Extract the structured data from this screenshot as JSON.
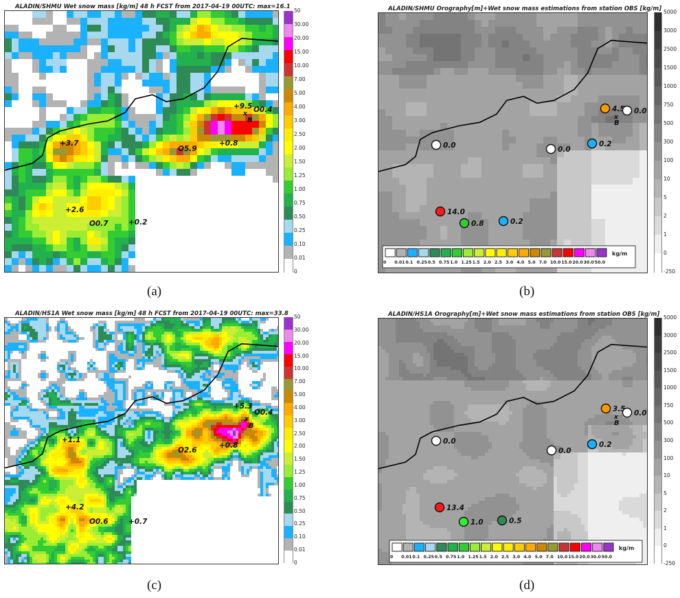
{
  "panels": {
    "a": {
      "title": "ALADIN/SHMU Wet snow mass [kg/m] 48 h FCST from 2017-04-19 00UTC: max=16.1",
      "caption": "(a)",
      "colorbar_labels": [
        "50",
        "30.00",
        "20.00",
        "15.00",
        "10.00",
        "7.00",
        "5.00",
        "4.00",
        "3.00",
        "2.50",
        "2.00",
        "1.50",
        "1.25",
        "1.00",
        "0.75",
        "0.50",
        "0.25",
        "0.10",
        "0.01",
        "0"
      ],
      "stations": [
        {
          "marker": "+",
          "value": "9.5",
          "color": "#000000"
        },
        {
          "marker": "O",
          "value": "0.4",
          "color": "#000000"
        },
        {
          "marker": "+",
          "value": "3.7",
          "color": "#000000"
        },
        {
          "marker": "O",
          "value": "5.9",
          "color": "#000000"
        },
        {
          "marker": "+",
          "value": "0.8",
          "color": "#000000"
        },
        {
          "marker": "+",
          "value": "2.6",
          "color": "#000000"
        },
        {
          "marker": "O",
          "value": "0.7",
          "color": "#000000"
        },
        {
          "marker": "+",
          "value": "0.2",
          "color": "#000000"
        }
      ],
      "point_label": "B",
      "point_marker": "x"
    },
    "b": {
      "title": "ALADIN/SHMU Orography[m]+Wet snow mass estimations from station OBS [kg/m]",
      "caption": "(b)",
      "colorbar_labels": [
        "5000",
        "3000",
        "2500",
        "1500",
        "1000",
        "750",
        "500",
        "300",
        "100",
        "10",
        "5",
        "2",
        "1",
        "0",
        "-250"
      ],
      "stations": [
        {
          "value": "4.5",
          "color": "#ff9900"
        },
        {
          "value": "0.0",
          "color": "#ffffff"
        },
        {
          "value": "0.0",
          "color": "#ffffff"
        },
        {
          "value": "0.0",
          "color": "#ffffff"
        },
        {
          "value": "0.2",
          "color": "#1ab2ff"
        },
        {
          "value": "14.0",
          "color": "#ff1a1a"
        },
        {
          "value": "0.8",
          "color": "#33cc33"
        },
        {
          "value": "0.2",
          "color": "#1ab2ff"
        }
      ],
      "point_label": "B",
      "point_marker": "x",
      "legend_labels": [
        "0",
        "0.01",
        "0.1",
        "0.25",
        "0.5",
        "0.75",
        "1.0",
        "1.25",
        "1.5",
        "2.0",
        "2.5",
        "3.0",
        "4.0",
        "5.0",
        "7.0",
        "10.0",
        "15.0",
        "20.0",
        "30.0",
        "50.0"
      ],
      "legend_unit": "kg/m"
    },
    "c": {
      "title": "ALADIN/HS1A Wet snow mass [kg/m] 48 h FCST from 2017-04-19 00UTC: max=33.8",
      "caption": "(c)",
      "colorbar_labels": [
        "50",
        "30.00",
        "20.00",
        "15.00",
        "10.00",
        "7.00",
        "5.00",
        "4.00",
        "3.00",
        "2.50",
        "2.00",
        "1.50",
        "1.25",
        "1.00",
        "0.75",
        "0.50",
        "0.25",
        "0.10",
        "0.01",
        "0"
      ],
      "stations": [
        {
          "marker": "+",
          "value": "5.3",
          "color": "#000000"
        },
        {
          "marker": "O",
          "value": "0.4",
          "color": "#000000"
        },
        {
          "marker": "+",
          "value": "1.1",
          "color": "#000000"
        },
        {
          "marker": "O",
          "value": "2.6",
          "color": "#000000"
        },
        {
          "marker": "+",
          "value": "0.8",
          "color": "#000000"
        },
        {
          "marker": "+",
          "value": "4.2",
          "color": "#000000"
        },
        {
          "marker": "O",
          "value": "0.6",
          "color": "#000000"
        },
        {
          "marker": "+",
          "value": "0.7",
          "color": "#000000"
        }
      ],
      "point_label": "B",
      "point_marker": "x"
    },
    "d": {
      "title": "ALADIN/HS1A Orography[m]+Wet snow mass estimations from station OBS [kg/m]",
      "caption": "(d)",
      "colorbar_labels": [
        "5000",
        "3000",
        "2500",
        "1500",
        "1000",
        "750",
        "500",
        "300",
        "100",
        "10",
        "5",
        "2",
        "1",
        "0",
        "-250"
      ],
      "stations": [
        {
          "value": "3.5",
          "color": "#ff9900"
        },
        {
          "value": "0.0",
          "color": "#ffffff"
        },
        {
          "value": "0.0",
          "color": "#ffffff"
        },
        {
          "value": "0.0",
          "color": "#ffffff"
        },
        {
          "value": "0.2",
          "color": "#1ab2ff"
        },
        {
          "value": "13.4",
          "color": "#ff1a1a"
        },
        {
          "value": "1.0",
          "color": "#33ee33"
        },
        {
          "value": "0.5",
          "color": "#2e8b57"
        }
      ],
      "point_label": "B",
      "point_marker": "x",
      "legend_labels": [
        "0",
        "0.01",
        "0.1",
        "0.25",
        "0.5",
        "0.75",
        "1.0",
        "1.25",
        "1.5",
        "2.0",
        "2.5",
        "3.0",
        "4.0",
        "5.0",
        "7.0",
        "10.0",
        "15.0",
        "20.0",
        "30.0",
        "50.0"
      ],
      "legend_unit": "kg/m"
    }
  },
  "snow_palette": [
    "#ffffff",
    "#b3b3b3",
    "#1ab2ff",
    "#a6d9f0",
    "#2e8b57",
    "#22b14c",
    "#33cc33",
    "#99ee33",
    "#ccee33",
    "#ffff00",
    "#ffee00",
    "#ffcc00",
    "#ffaa00",
    "#cc8800",
    "#999933",
    "#cc3333",
    "#ff0000",
    "#ff00ff",
    "#ee88ee",
    "#9933cc"
  ],
  "oro_palette": [
    "#ffffff",
    "#efefef",
    "#dadada",
    "#c8c8c8",
    "#b4b4b4",
    "#a3a3a3",
    "#929292",
    "#838383",
    "#747474",
    "#666666",
    "#585858",
    "#4a4a4a",
    "#3c3c3c",
    "#2e2e2e"
  ]
}
